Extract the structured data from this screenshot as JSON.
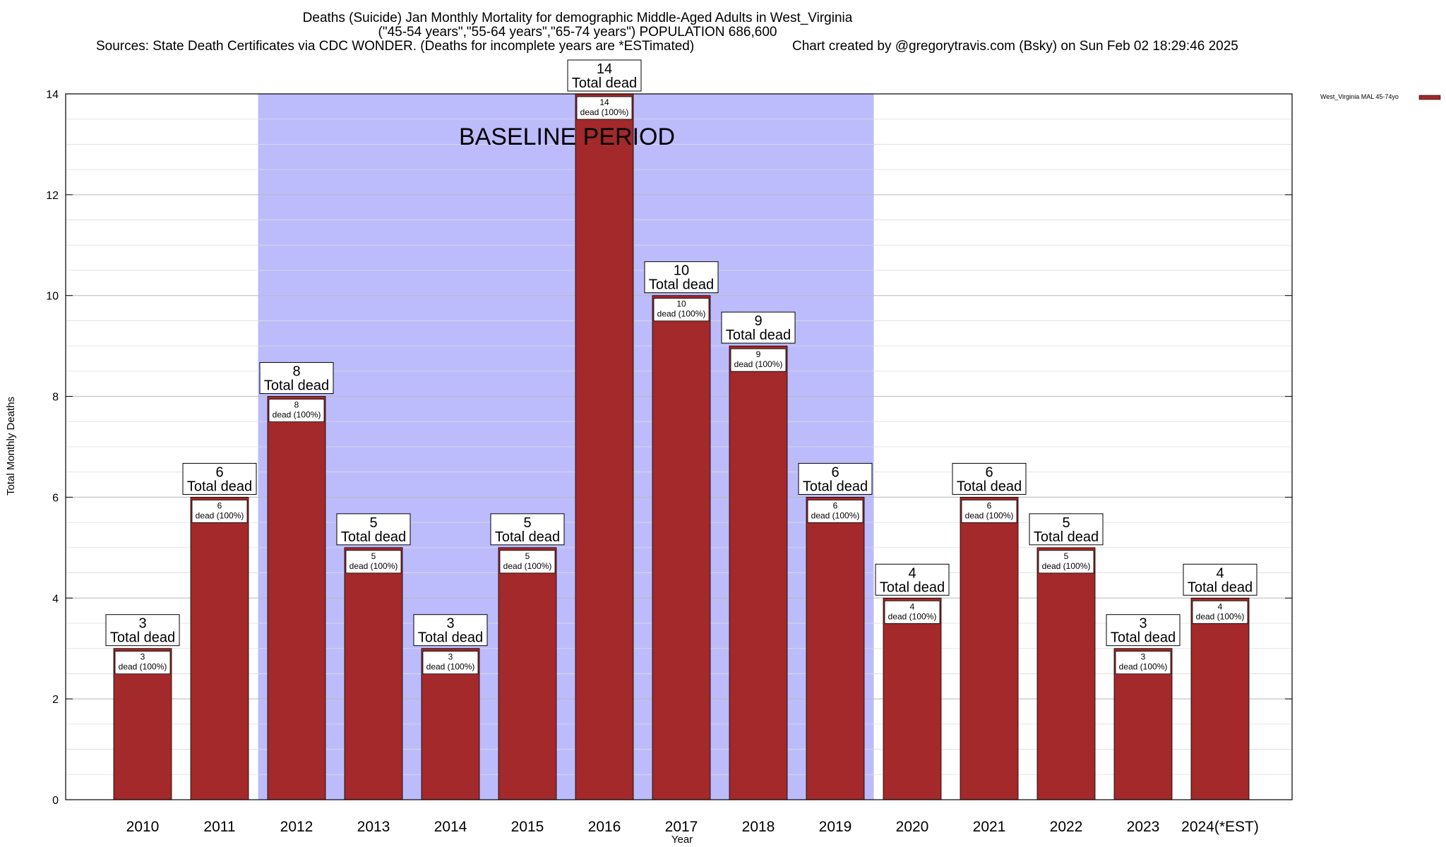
{
  "title": {
    "line1": "Deaths (Suicide) Jan Monthly Mortality for demographic Middle-Aged Adults in West_Virginia",
    "line2": "(\"45-54 years\",\"55-64 years\",\"65-74 years\") POPULATION 686,600",
    "line3_left": "Sources: State Death Certificates via CDC WONDER. (Deaths for incomplete years are *ESTimated)",
    "line3_right": "Chart created by @gregorytravis.com (Bsky) on Sun Feb 02 18:29:46 2025"
  },
  "baseline": {
    "label": "BASELINE PERIOD",
    "start_category": "2012",
    "end_category": "2019",
    "color": "#bcbcfc"
  },
  "legend": {
    "label": "West_Virginia MAL 45-74yo",
    "color": "#a3292a"
  },
  "colors": {
    "bar": "#a3292a",
    "grid_major": "#b8b8b8",
    "grid_minor": "#dcdcdc"
  },
  "chart_data": {
    "type": "bar",
    "xlabel": "Year",
    "ylabel": "Total Monthly Deaths",
    "ylim": [
      0,
      14
    ],
    "yticks": [
      0,
      2,
      4,
      6,
      8,
      10,
      12,
      14
    ],
    "grid": true,
    "legend_position": "top-right",
    "categories": [
      "2010",
      "2011",
      "2012",
      "2013",
      "2014",
      "2015",
      "2016",
      "2017",
      "2018",
      "2019",
      "2020",
      "2021",
      "2022",
      "2023",
      "2024(*EST)"
    ],
    "series": [
      {
        "name": "West_Virginia MAL 45-74yo",
        "values": [
          3,
          6,
          8,
          5,
          3,
          5,
          14,
          10,
          9,
          6,
          4,
          6,
          5,
          3,
          4
        ]
      }
    ],
    "callout_text": "Total dead",
    "inner_label_text": "dead (100%)"
  }
}
